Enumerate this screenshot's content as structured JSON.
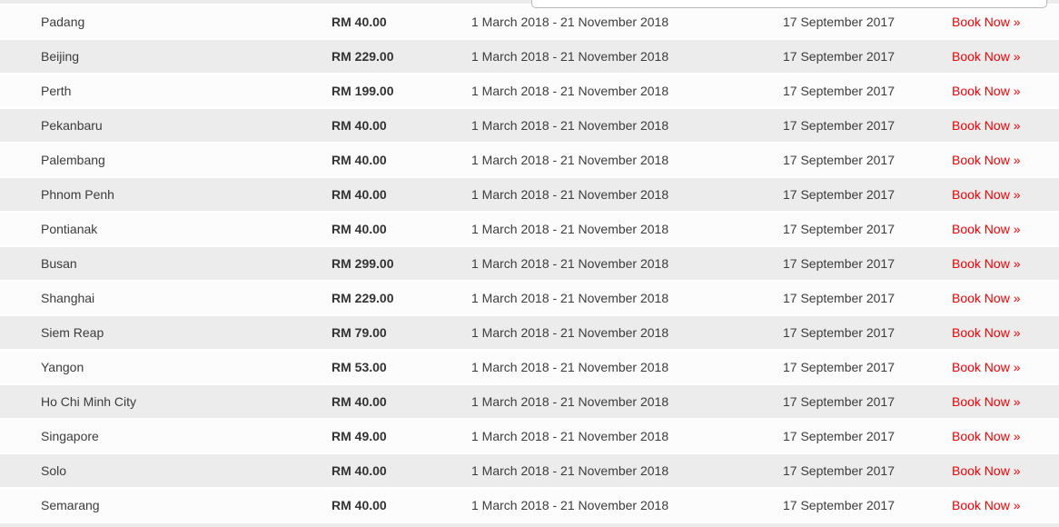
{
  "colors": {
    "accent_red": "#f40000",
    "row_alt_gray": "#ececec",
    "row_base": "#fcfcfc"
  },
  "table": {
    "rows": [
      {
        "city": "Padang",
        "price": "RM 40.00",
        "period": "1 March 2018 - 21 November 2018",
        "book_by": "17 September 2017",
        "action": "Book Now »"
      },
      {
        "city": "Beijing",
        "price": "RM 229.00",
        "period": "1 March 2018 - 21 November 2018",
        "book_by": "17 September 2017",
        "action": "Book Now »"
      },
      {
        "city": "Perth",
        "price": "RM 199.00",
        "period": "1 March 2018 - 21 November 2018",
        "book_by": "17 September 2017",
        "action": "Book Now »"
      },
      {
        "city": "Pekanbaru",
        "price": "RM 40.00",
        "period": "1 March 2018 - 21 November 2018",
        "book_by": "17 September 2017",
        "action": "Book Now »"
      },
      {
        "city": "Palembang",
        "price": "RM 40.00",
        "period": "1 March 2018 - 21 November 2018",
        "book_by": "17 September 2017",
        "action": "Book Now »"
      },
      {
        "city": "Phnom Penh",
        "price": "RM 40.00",
        "period": "1 March 2018 - 21 November 2018",
        "book_by": "17 September 2017",
        "action": "Book Now »"
      },
      {
        "city": "Pontianak",
        "price": "RM 40.00",
        "period": "1 March 2018 - 21 November 2018",
        "book_by": "17 September 2017",
        "action": "Book Now »"
      },
      {
        "city": "Busan",
        "price": "RM 299.00",
        "period": "1 March 2018 - 21 November 2018",
        "book_by": "17 September 2017",
        "action": "Book Now »"
      },
      {
        "city": "Shanghai",
        "price": "RM 229.00",
        "period": "1 March 2018 - 21 November 2018",
        "book_by": "17 September 2017",
        "action": "Book Now »"
      },
      {
        "city": "Siem Reap",
        "price": "RM 79.00",
        "period": "1 March 2018 - 21 November 2018",
        "book_by": "17 September 2017",
        "action": "Book Now »"
      },
      {
        "city": "Yangon",
        "price": "RM 53.00",
        "period": "1 March 2018 - 21 November 2018",
        "book_by": "17 September 2017",
        "action": "Book Now »"
      },
      {
        "city": "Ho Chi Minh City",
        "price": "RM 40.00",
        "period": "1 March 2018 - 21 November 2018",
        "book_by": "17 September 2017",
        "action": "Book Now »"
      },
      {
        "city": "Singapore",
        "price": "RM 49.00",
        "period": "1 March 2018 - 21 November 2018",
        "book_by": "17 September 2017",
        "action": "Book Now »"
      },
      {
        "city": "Solo",
        "price": "RM 40.00",
        "period": "1 March 2018 - 21 November 2018",
        "book_by": "17 September 2017",
        "action": "Book Now »"
      },
      {
        "city": "Semarang",
        "price": "RM 40.00",
        "period": "1 March 2018 - 21 November 2018",
        "book_by": "17 September 2017",
        "action": "Book Now »"
      }
    ]
  }
}
